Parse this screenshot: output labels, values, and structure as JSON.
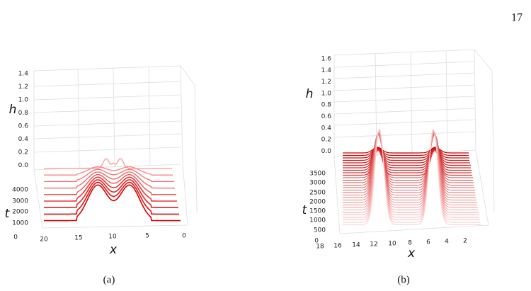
{
  "page_number": "17",
  "panels": [
    {
      "caption": "(a)",
      "h_label": "h",
      "t_label": "t",
      "x_label": "x",
      "h_ticks": [
        "1.4",
        "1.2",
        "1.0",
        "0.8",
        "0.6",
        "0.4",
        "0.2",
        "0.0"
      ],
      "t_ticks": [
        "4000",
        "3000",
        "2000",
        "1000",
        "0"
      ],
      "x_ticks": [
        "20",
        "15",
        "10",
        "5",
        "0"
      ]
    },
    {
      "caption": "(b)",
      "h_label": "h",
      "t_label": "t",
      "x_label": "x",
      "h_ticks": [
        "1.6",
        "1.4",
        "1.2",
        "1.0",
        "0.8",
        "0.6",
        "0.4",
        "0.2",
        "0.0"
      ],
      "t_ticks": [
        "3500",
        "3000",
        "2500",
        "2000",
        "1500",
        "1000",
        "500",
        "0"
      ],
      "x_ticks": [
        "18",
        "16",
        "14",
        "12",
        "10",
        "8",
        "6",
        "4",
        "2"
      ]
    }
  ]
}
